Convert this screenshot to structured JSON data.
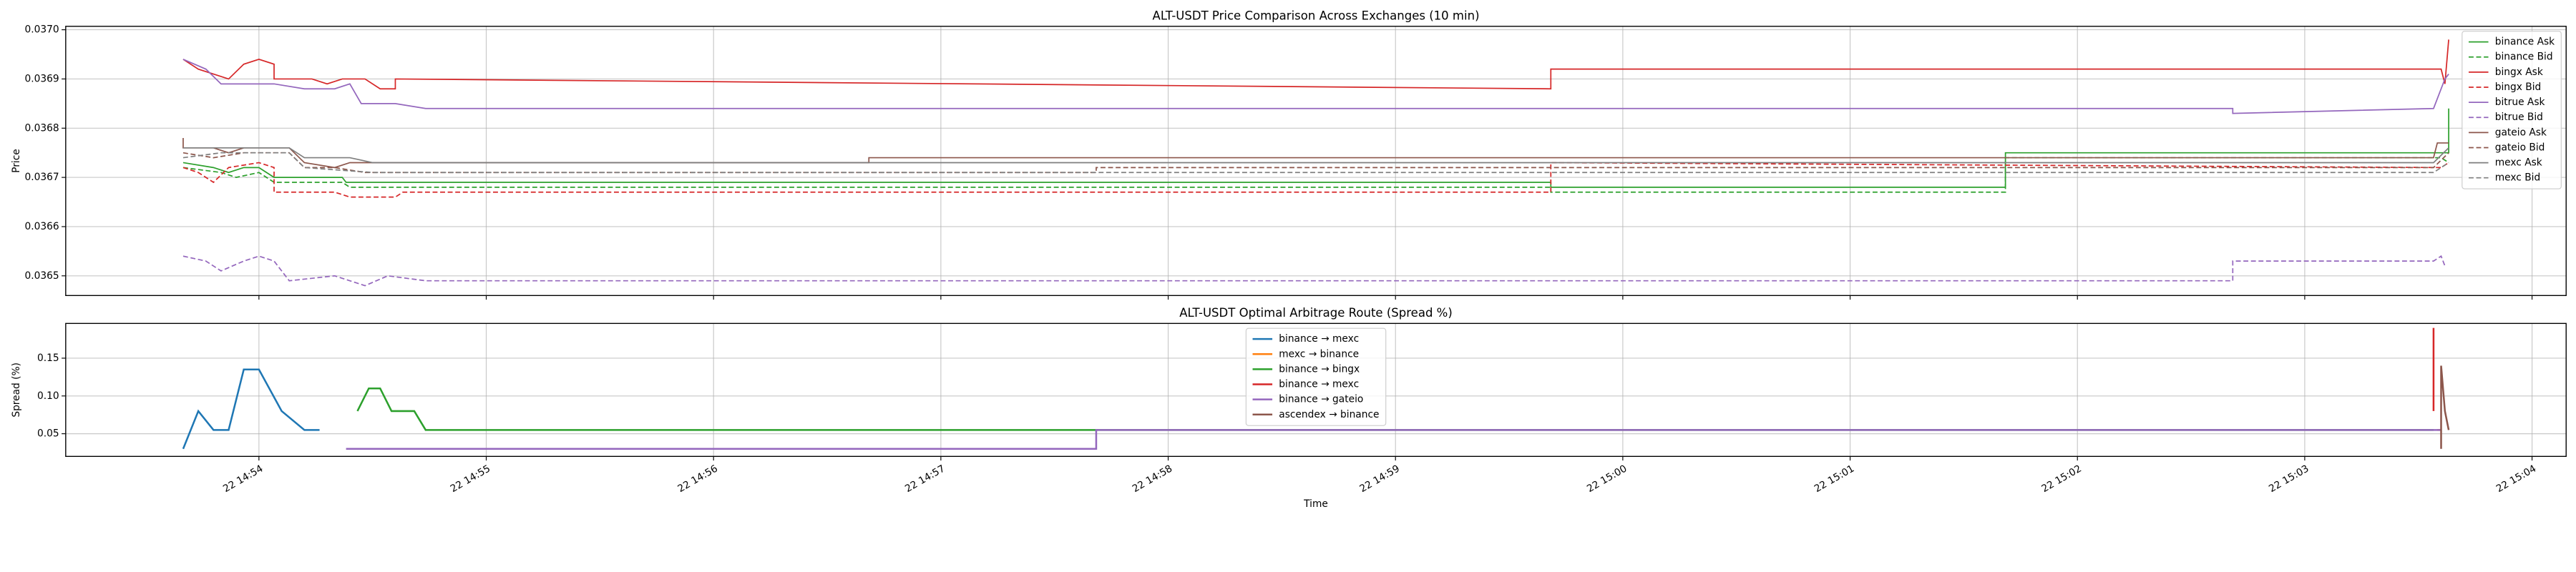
{
  "chart_data": [
    {
      "type": "line",
      "title": "ALT-USDT Price Comparison Across Exchanges (10 min)",
      "ylabel": "Price",
      "xlim": [
        "14:53:09",
        "15:04:09"
      ],
      "xticks": [
        "14:54:00",
        "14:55:00",
        "14:56:00",
        "14:57:00",
        "14:58:00",
        "14:59:00",
        "15:00:00",
        "15:01:00",
        "15:02:00",
        "15:03:00",
        "15:04:00"
      ],
      "ylim": [
        0.03646,
        0.037007
      ],
      "yticks": [
        0.0365,
        0.0366,
        0.0367,
        0.0368,
        0.0369,
        {
          "value": 0.037,
          "label": "0.0370"
        }
      ],
      "grid": true,
      "legend": "upper right",
      "series": [
        {
          "name": "binance Ask",
          "color": "#2ca02c",
          "linestyle": "solid",
          "x": [
            "14:53:40",
            "14:53:48",
            "14:53:52",
            "14:53:56",
            "14:54:00",
            "14:54:04",
            "14:54:22",
            "14:54:23",
            "14:59:41",
            "14:59:41",
            "15:01:41",
            "15:01:41",
            "15:03:38",
            "15:03:38"
          ],
          "values": [
            0.03673,
            0.03672,
            0.03671,
            0.03672,
            0.03672,
            0.0367,
            0.0367,
            0.03669,
            0.03669,
            0.03668,
            0.03668,
            0.03675,
            0.03675,
            0.03684
          ]
        },
        {
          "name": "binance Bid",
          "color": "#2ca02c",
          "linestyle": "dashed",
          "x": [
            "14:53:40",
            "14:53:50",
            "14:53:54",
            "14:54:00",
            "14:54:04",
            "14:54:22",
            "14:54:24",
            "14:59:41",
            "14:59:41",
            "15:01:41",
            "15:01:41",
            "15:03:36",
            "15:03:38"
          ],
          "values": [
            0.03672,
            0.03671,
            0.0367,
            0.03671,
            0.03669,
            0.03669,
            0.03668,
            0.03668,
            0.03667,
            0.03667,
            0.03674,
            0.03674,
            0.03673
          ]
        },
        {
          "name": "bingx Ask",
          "color": "#d62728",
          "linestyle": "solid",
          "x": [
            "14:53:40",
            "14:53:44",
            "14:53:48",
            "14:53:52",
            "14:53:56",
            "14:54:00",
            "14:54:04",
            "14:54:04",
            "14:54:14",
            "14:54:18",
            "14:54:22",
            "14:54:28",
            "14:54:32",
            "14:54:36",
            "14:54:36",
            "14:59:41",
            "14:59:41",
            "15:03:36",
            "15:03:37",
            "15:03:38"
          ],
          "values": [
            0.03694,
            0.03692,
            0.03691,
            0.0369,
            0.03693,
            0.03694,
            0.03693,
            0.0369,
            0.0369,
            0.03689,
            0.0369,
            0.0369,
            0.03688,
            0.03688,
            0.0369,
            0.03688,
            0.03692,
            0.03692,
            0.03689,
            0.03698
          ]
        },
        {
          "name": "bingx Bid",
          "color": "#d62728",
          "linestyle": "dashed",
          "x": [
            "14:53:40",
            "14:53:44",
            "14:53:48",
            "14:53:52",
            "14:54:00",
            "14:54:04",
            "14:54:04",
            "14:54:20",
            "14:54:24",
            "14:54:36",
            "14:54:38",
            "14:59:41",
            "14:59:41",
            "15:03:36",
            "15:03:38"
          ],
          "values": [
            0.03672,
            0.03671,
            0.03669,
            0.03672,
            0.03673,
            0.03672,
            0.03667,
            0.03667,
            0.03666,
            0.03666,
            0.03667,
            0.03667,
            0.03673,
            0.03672,
            0.03673
          ]
        },
        {
          "name": "bitrue Ask",
          "color": "#9467bd",
          "linestyle": "solid",
          "x": [
            "14:53:40",
            "14:53:46",
            "14:53:50",
            "14:53:56",
            "14:54:04",
            "14:54:12",
            "14:54:20",
            "14:54:24",
            "14:54:27",
            "14:54:36",
            "14:54:44",
            "14:54:46",
            "15:02:41",
            "15:02:41",
            "15:03:34",
            "15:03:37",
            "15:03:38"
          ],
          "values": [
            0.03694,
            0.03692,
            0.03689,
            0.03689,
            0.03689,
            0.03688,
            0.03688,
            0.03689,
            0.03685,
            0.03685,
            0.03684,
            0.03684,
            0.03684,
            0.03683,
            0.03684,
            0.0369,
            0.03691
          ]
        },
        {
          "name": "bitrue Bid",
          "color": "#9467bd",
          "linestyle": "dashed",
          "x": [
            "14:53:40",
            "14:53:46",
            "14:53:50",
            "14:53:56",
            "14:54:00",
            "14:54:04",
            "14:54:08",
            "14:54:20",
            "14:54:24",
            "14:54:28",
            "14:54:34",
            "14:54:44",
            "14:54:46",
            "15:02:41",
            "15:02:41",
            "15:03:34",
            "15:03:36",
            "15:03:37"
          ],
          "values": [
            0.03654,
            0.03653,
            0.03651,
            0.03653,
            0.03654,
            0.03653,
            0.03649,
            0.0365,
            0.03649,
            0.03648,
            0.0365,
            0.03649,
            0.03649,
            0.03649,
            0.03653,
            0.03653,
            0.03654,
            0.03652
          ]
        },
        {
          "name": "gateio Ask",
          "color": "#8c564b",
          "linestyle": "solid",
          "x": [
            "14:53:40",
            "14:53:40",
            "14:53:48",
            "14:53:52",
            "14:53:56",
            "14:54:08",
            "14:54:12",
            "14:54:20",
            "14:54:24",
            "14:56:41",
            "14:56:41",
            "15:03:34",
            "15:03:35",
            "15:03:38"
          ],
          "values": [
            0.03678,
            0.03676,
            0.03676,
            0.03675,
            0.03676,
            0.03676,
            0.03673,
            0.03672,
            0.03673,
            0.03673,
            0.03674,
            0.03674,
            0.03677,
            0.03677
          ]
        },
        {
          "name": "gateio Bid",
          "color": "#8c564b",
          "linestyle": "dashed",
          "x": [
            "14:53:40",
            "14:53:48",
            "14:53:56",
            "14:54:08",
            "14:54:12",
            "14:54:20",
            "14:54:28",
            "14:57:41",
            "14:57:41",
            "15:03:34",
            "15:03:38"
          ],
          "values": [
            0.03675,
            0.03674,
            0.03675,
            0.03675,
            0.03672,
            0.03672,
            0.03671,
            0.03671,
            0.03672,
            0.03672,
            0.03675
          ]
        },
        {
          "name": "mexc Ask",
          "color": "#7f7f7f",
          "linestyle": "solid",
          "x": [
            "14:53:40",
            "14:53:50",
            "14:54:08",
            "14:54:12",
            "14:54:24",
            "14:54:30",
            "15:03:34",
            "15:03:38"
          ],
          "values": [
            0.03676,
            0.03676,
            0.03676,
            0.03674,
            0.03674,
            0.03673,
            0.03673,
            0.03676
          ]
        },
        {
          "name": "mexc Bid",
          "color": "#7f7f7f",
          "linestyle": "dashed",
          "x": [
            "14:53:40",
            "14:53:50",
            "14:54:08",
            "14:54:12",
            "14:54:30",
            "15:03:34",
            "15:03:38"
          ],
          "values": [
            0.03674,
            0.03675,
            0.03675,
            0.03672,
            0.03671,
            0.03671,
            0.03673
          ]
        }
      ]
    },
    {
      "type": "line",
      "title": "ALT-USDT Optimal Arbitrage Route (Spread %)",
      "ylabel": "Spread (%)",
      "xlabel": "Time",
      "xlim": [
        "14:53:09",
        "15:04:09"
      ],
      "xticks": [
        {
          "value": "14:54:00",
          "label": "22 14:54"
        },
        {
          "value": "14:55:00",
          "label": "22 14:55"
        },
        {
          "value": "14:56:00",
          "label": "22 14:56"
        },
        {
          "value": "14:57:00",
          "label": "22 14:57"
        },
        {
          "value": "14:58:00",
          "label": "22 14:58"
        },
        {
          "value": "14:59:00",
          "label": "22 14:59"
        },
        {
          "value": "15:00:00",
          "label": "22 15:00"
        },
        {
          "value": "15:01:00",
          "label": "22 15:01"
        },
        {
          "value": "15:02:00",
          "label": "22 15:02"
        },
        {
          "value": "15:03:00",
          "label": "22 15:03"
        },
        {
          "value": "15:04:00",
          "label": "22 15:04"
        }
      ],
      "ylim": [
        0.02,
        0.196
      ],
      "yticks": [
        0.05,
        {
          "value": 0.1,
          "label": "0.10"
        },
        0.15
      ],
      "grid": true,
      "legend": "upper center",
      "series": [
        {
          "name": "binance → mexc",
          "color": "#1f77b4",
          "linestyle": "solid",
          "x": [
            "14:53:40",
            "14:53:44",
            "14:53:48",
            "14:53:52",
            "14:53:56",
            "14:54:00",
            "14:54:06",
            "14:54:12",
            "14:54:16"
          ],
          "values": [
            0.03,
            0.08,
            0.055,
            0.055,
            0.135,
            0.135,
            0.08,
            0.055,
            0.055
          ]
        },
        {
          "name": "mexc → binance",
          "color": "#ff7f0e",
          "linestyle": "solid",
          "x": [
            "15:03:35",
            "15:03:36"
          ],
          "values": [
            0.055,
            0.055
          ]
        },
        {
          "name": "binance → bingx",
          "color": "#2ca02c",
          "linestyle": "solid",
          "x": [
            "14:54:26",
            "14:54:29",
            "14:54:32",
            "14:54:35",
            "14:54:41",
            "14:54:44",
            "15:03:34"
          ],
          "values": [
            0.08,
            0.11,
            0.11,
            0.08,
            0.08,
            0.055,
            0.055
          ]
        },
        {
          "name": "binance → mexc",
          "color": "#d62728",
          "linestyle": "solid",
          "x": [
            "15:03:34",
            "15:03:34"
          ],
          "values": [
            0.19,
            0.08
          ]
        },
        {
          "name": "binance → gateio",
          "color": "#9467bd",
          "linestyle": "solid",
          "x": [
            "14:54:23",
            "14:57:41",
            "14:57:41",
            "15:03:36"
          ],
          "values": [
            0.03,
            0.03,
            0.055,
            0.055
          ]
        },
        {
          "name": "ascendex → binance",
          "color": "#8c564b",
          "linestyle": "solid",
          "x": [
            "15:03:36",
            "15:03:36",
            "15:03:37",
            "15:03:38"
          ],
          "values": [
            0.03,
            0.14,
            0.08,
            0.055
          ]
        }
      ]
    }
  ]
}
